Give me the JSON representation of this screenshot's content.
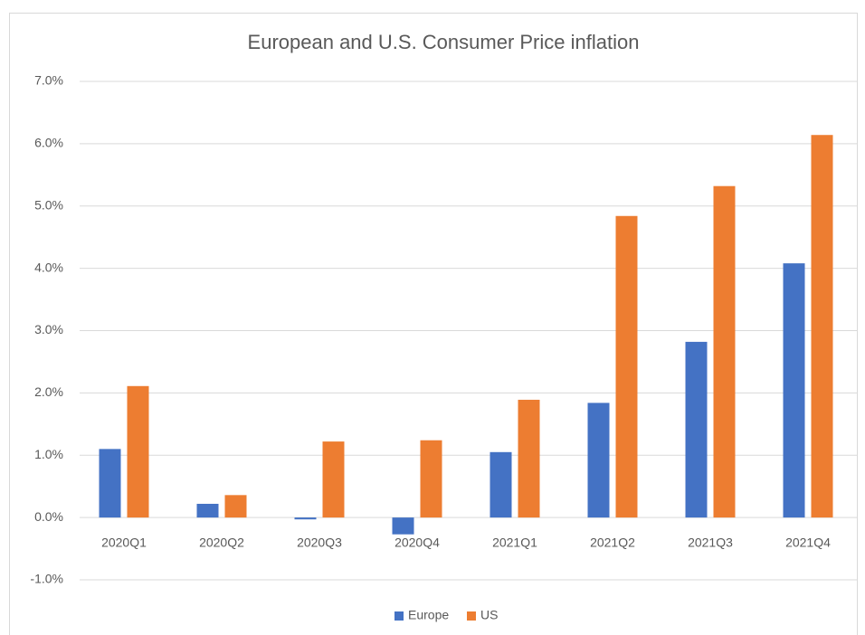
{
  "chart_data": {
    "type": "bar",
    "title": "European and U.S. Consumer Price inflation",
    "categories": [
      "2020Q1",
      "2020Q2",
      "2020Q3",
      "2020Q4",
      "2021Q1",
      "2021Q2",
      "2021Q3",
      "2021Q4"
    ],
    "series": [
      {
        "name": "Europe",
        "color": "#4472c4",
        "values": [
          1.1,
          0.22,
          -0.03,
          -0.27,
          1.05,
          1.84,
          2.82,
          4.08
        ]
      },
      {
        "name": "US",
        "color": "#ed7d31",
        "values": [
          2.11,
          0.36,
          1.22,
          1.24,
          1.89,
          4.84,
          5.32,
          6.14
        ]
      }
    ],
    "ylim": [
      -1,
      7
    ],
    "yticks": [
      {
        "value": -1,
        "label": "-1.0%"
      },
      {
        "value": 0,
        "label": "0.0%"
      },
      {
        "value": 1,
        "label": "1.0%"
      },
      {
        "value": 2,
        "label": "2.0%"
      },
      {
        "value": 3,
        "label": "3.0%"
      },
      {
        "value": 4,
        "label": "4.0%"
      },
      {
        "value": 5,
        "label": "5.0%"
      },
      {
        "value": 6,
        "label": "6.0%"
      },
      {
        "value": 7,
        "label": "7.0%"
      }
    ],
    "grid": true,
    "legend": "bottom"
  }
}
